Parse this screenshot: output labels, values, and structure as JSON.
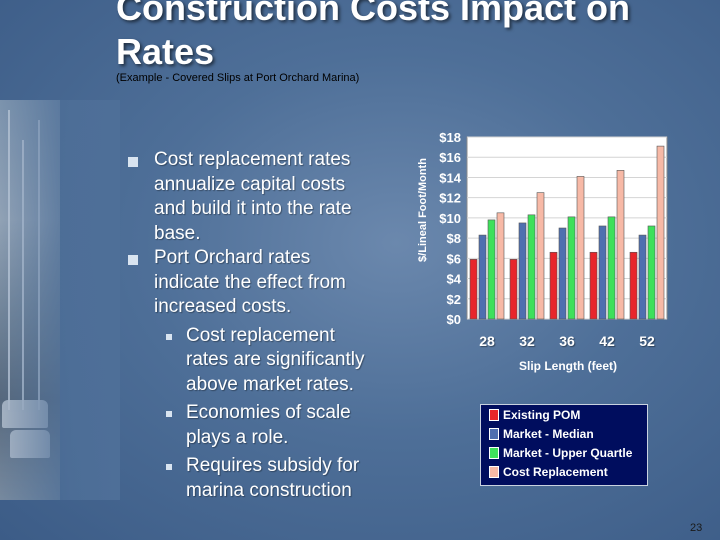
{
  "slide": {
    "title": "Construction Costs Impact on Rates",
    "subtitle": "(Example - Covered Slips at Port Orchard Marina)",
    "page_number": "23"
  },
  "bullets": [
    {
      "text": "Cost replacement rates annualize capital costs and build it into the rate base.",
      "level": 1
    },
    {
      "text": "Port Orchard rates indicate the effect from increased costs.",
      "level": 1
    },
    {
      "text": "Cost replacement rates are significantly above market rates.",
      "level": 2
    },
    {
      "text": "Economies of scale plays a role.",
      "level": 2
    },
    {
      "text": "Requires subsidy for marina construction",
      "level": 2
    }
  ],
  "chart_data": {
    "type": "bar",
    "title": "",
    "xlabel": "Slip Length (feet)",
    "ylabel": "$/Lineal Foot/Month",
    "categories": [
      "28",
      "32",
      "36",
      "42",
      "52"
    ],
    "ylim": [
      0,
      18
    ],
    "yticks": [
      "$0",
      "$2",
      "$4",
      "$6",
      "$8",
      "$10",
      "$12",
      "$14",
      "$16",
      "$18"
    ],
    "legend_position": "bottom-right",
    "series": [
      {
        "name": "Existing POM",
        "color": "#e8262b",
        "values": [
          5.9,
          5.9,
          6.6,
          6.6,
          6.6
        ]
      },
      {
        "name": "Market - Median",
        "color": "#4f6fb0",
        "values": [
          8.3,
          9.5,
          9.0,
          9.2,
          8.3
        ]
      },
      {
        "name": "Market - Upper Quartle",
        "color": "#3ee05b",
        "values": [
          9.8,
          10.3,
          10.1,
          10.1,
          9.2
        ]
      },
      {
        "name": "Cost Replacement",
        "color": "#f7b9a6",
        "values": [
          10.5,
          12.5,
          14.1,
          14.7,
          17.1
        ]
      }
    ]
  }
}
